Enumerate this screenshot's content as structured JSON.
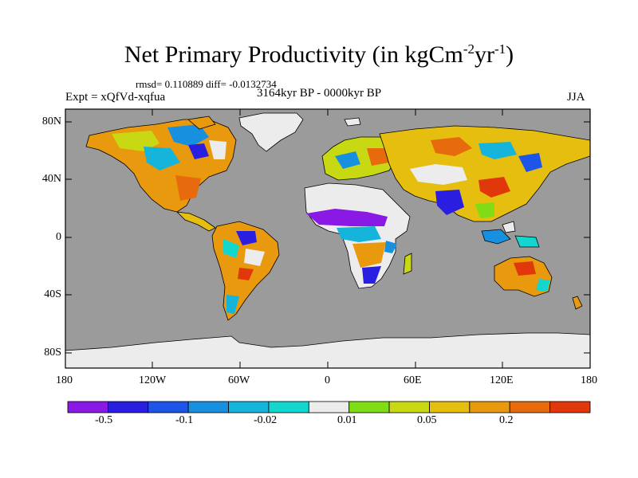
{
  "header": {
    "title_main": "Net Primary Productivity (in kgCm",
    "title_sup1": "-2",
    "title_mid": "yr",
    "title_sup2": "-1",
    "title_end": ")",
    "stats": "rmsd= 0.110889 diff= -0.0132734",
    "experiment": "Expt = xQfVd-xqfua",
    "period": "3164kyr BP - 0000kyr BP",
    "season": "JJA"
  },
  "map": {
    "ocean_color": "#9b9b9b",
    "ice_color": "#ececec",
    "lat_labels": [
      "80N",
      "40N",
      "0",
      "40S",
      "80S"
    ],
    "lon_labels": [
      "180",
      "120W",
      "60W",
      "0",
      "60E",
      "120E",
      "180"
    ]
  },
  "colorbar": {
    "colors": [
      "#8a19e6",
      "#2a1ee0",
      "#1d55e8",
      "#1890e0",
      "#15b4da",
      "#13d6cf",
      "#ececec",
      "#7fdc15",
      "#c8d812",
      "#e5be10",
      "#e8990e",
      "#e76b0c",
      "#e0380a"
    ],
    "labels": [
      "-0.5",
      "-0.1",
      "-0.02",
      "0.01",
      "0.05",
      "0.2"
    ]
  }
}
